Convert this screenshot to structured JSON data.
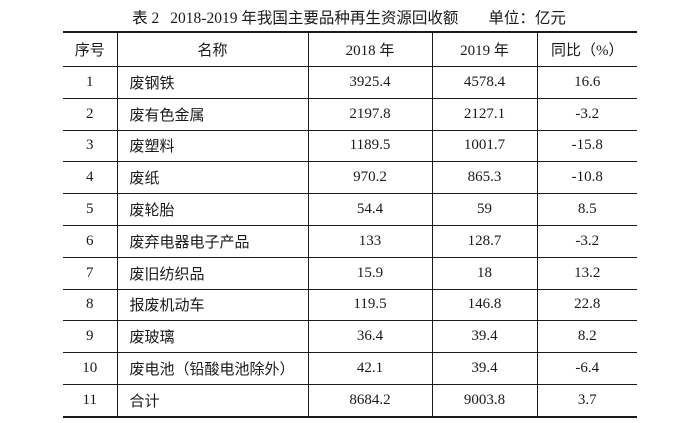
{
  "title": {
    "label": "表 2",
    "text": "2018-2019 年我国主要品种再生资源回收额",
    "unit": "单位：亿元"
  },
  "table": {
    "headers": [
      "序号",
      "名称",
      "2018 年",
      "2019 年",
      "同比（%）"
    ],
    "rows": [
      [
        "1",
        "废钢铁",
        "3925.4",
        "4578.4",
        "16.6"
      ],
      [
        "2",
        "废有色金属",
        "2197.8",
        "2127.1",
        "-3.2"
      ],
      [
        "3",
        "废塑料",
        "1189.5",
        "1001.7",
        "-15.8"
      ],
      [
        "4",
        "废纸",
        "970.2",
        "865.3",
        "-10.8"
      ],
      [
        "5",
        "废轮胎",
        "54.4",
        "59",
        "8.5"
      ],
      [
        "6",
        "废弃电器电子产品",
        "133",
        "128.7",
        "-3.2"
      ],
      [
        "7",
        "废旧纺织品",
        "15.9",
        "18",
        "13.2"
      ],
      [
        "8",
        "报废机动车",
        "119.5",
        "146.8",
        "22.8"
      ],
      [
        "9",
        "废玻璃",
        "36.4",
        "39.4",
        "8.2"
      ],
      [
        "10",
        "废电池（铅酸电池除外）",
        "42.1",
        "39.4",
        "-6.4"
      ],
      [
        "11",
        "合计",
        "8684.2",
        "9003.8",
        "3.7"
      ]
    ]
  },
  "colors": {
    "text": "#1a1a1a",
    "border": "#1a1a1a",
    "background": "#ffffff"
  }
}
